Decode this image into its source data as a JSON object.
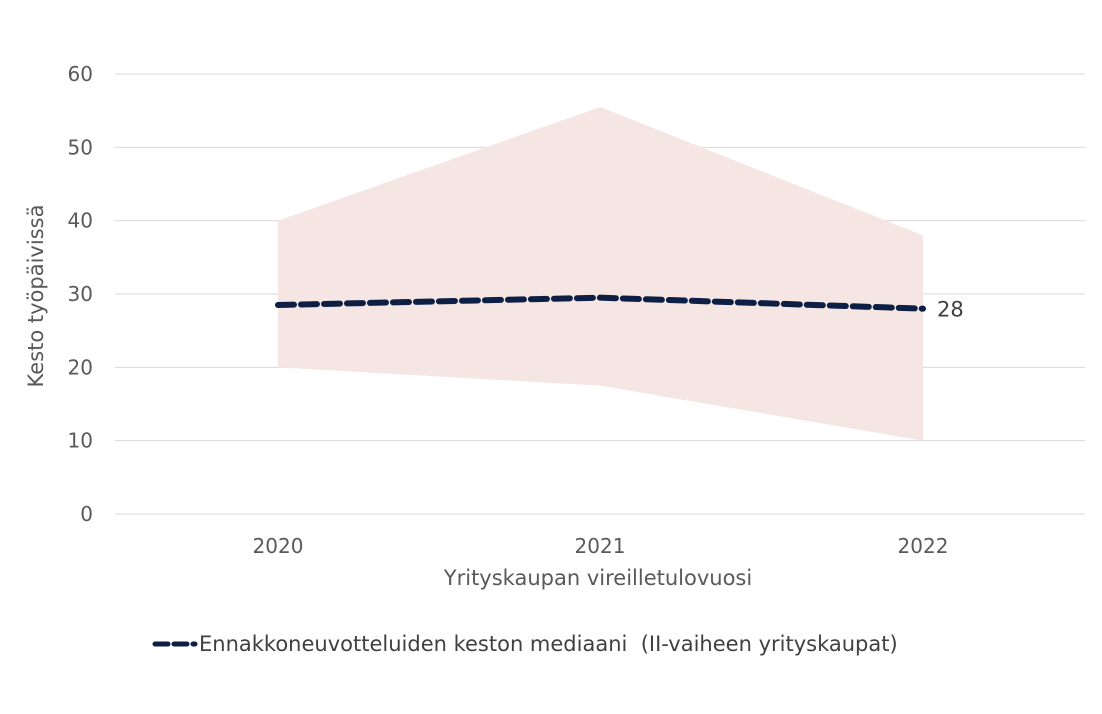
{
  "chart_data": {
    "type": "line",
    "title": "",
    "xlabel": "Yrityskaupan vireilletulovuosi",
    "ylabel": "Kesto työpäivissä",
    "categories": [
      "2020",
      "2021",
      "2022"
    ],
    "ylim": [
      0,
      60
    ],
    "yticks": [
      "0",
      "10",
      "20",
      "30",
      "40",
      "50",
      "60"
    ],
    "grid": true,
    "legend_position": "bottom",
    "series": [
      {
        "name": "Ennakkoneuvotteluiden keston mediaani  (II-vaiheen yrityskaupat)",
        "values": [
          28.5,
          29.5,
          28
        ],
        "style": "dashed",
        "color": "#0d1f44"
      }
    ],
    "range_band": {
      "lower": [
        20,
        17.5,
        10
      ],
      "upper": [
        40,
        55.5,
        38
      ],
      "color": "#f5e6e4"
    },
    "data_labels": [
      {
        "category": "2022",
        "text": "28"
      }
    ]
  }
}
